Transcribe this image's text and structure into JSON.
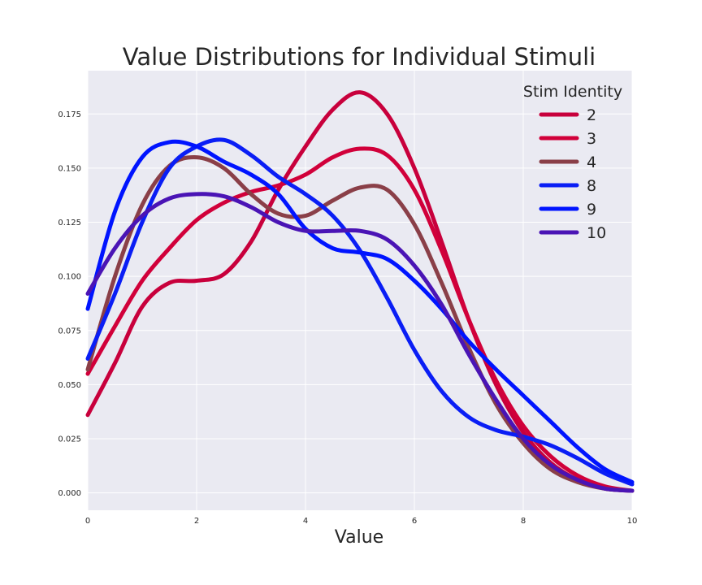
{
  "chart_data": {
    "type": "line",
    "title": "Value Distributions for Individual Stimuli",
    "xlabel": "Value",
    "ylabel": "",
    "xlim": [
      0,
      10
    ],
    "ylim": [
      -0.008,
      0.195
    ],
    "xticks": [
      0,
      2,
      4,
      6,
      8,
      10
    ],
    "yticks": [
      0.0,
      0.025,
      0.05,
      0.075,
      0.1,
      0.125,
      0.15,
      0.175
    ],
    "xtick_labels": [
      "0",
      "2",
      "4",
      "6",
      "8",
      "10"
    ],
    "ytick_labels": [
      "0.000",
      "0.025",
      "0.050",
      "0.075",
      "0.100",
      "0.125",
      "0.150",
      "0.175"
    ],
    "grid": true,
    "background": "#eaeaf2",
    "legend": {
      "title": "Stim Identity",
      "placement": "top-right"
    },
    "x": [
      0,
      0.5,
      1,
      1.5,
      2,
      2.5,
      3,
      3.5,
      4,
      4.5,
      5,
      5.5,
      6,
      6.5,
      7,
      7.5,
      8,
      8.5,
      9,
      9.5,
      10
    ],
    "series": [
      {
        "name": "2",
        "color": "#c8003c",
        "values": [
          0.036,
          0.06,
          0.086,
          0.097,
          0.098,
          0.101,
          0.116,
          0.14,
          0.16,
          0.177,
          0.185,
          0.175,
          0.15,
          0.116,
          0.08,
          0.05,
          0.028,
          0.014,
          0.006,
          0.002,
          0.001
        ]
      },
      {
        "name": "3",
        "color": "#d1003a",
        "values": [
          0.055,
          0.077,
          0.098,
          0.113,
          0.126,
          0.134,
          0.139,
          0.142,
          0.147,
          0.155,
          0.159,
          0.156,
          0.14,
          0.112,
          0.08,
          0.052,
          0.031,
          0.017,
          0.008,
          0.003,
          0.001
        ]
      },
      {
        "name": "4",
        "color": "#8a3f48",
        "values": [
          0.057,
          0.1,
          0.133,
          0.151,
          0.155,
          0.15,
          0.138,
          0.129,
          0.128,
          0.135,
          0.141,
          0.14,
          0.124,
          0.097,
          0.067,
          0.041,
          0.023,
          0.011,
          0.005,
          0.002,
          0.001
        ]
      },
      {
        "name": "8",
        "color": "#0a1ef5",
        "values": [
          0.062,
          0.092,
          0.125,
          0.15,
          0.16,
          0.163,
          0.156,
          0.146,
          0.138,
          0.128,
          0.112,
          0.09,
          0.066,
          0.047,
          0.035,
          0.029,
          0.026,
          0.022,
          0.016,
          0.009,
          0.004
        ]
      },
      {
        "name": "9",
        "color": "#0014ff",
        "values": [
          0.085,
          0.13,
          0.155,
          0.162,
          0.16,
          0.153,
          0.147,
          0.138,
          0.122,
          0.113,
          0.111,
          0.108,
          0.098,
          0.085,
          0.07,
          0.057,
          0.045,
          0.033,
          0.021,
          0.011,
          0.005
        ]
      },
      {
        "name": "10",
        "color": "#4a14b5",
        "values": [
          0.092,
          0.113,
          0.128,
          0.136,
          0.138,
          0.137,
          0.132,
          0.125,
          0.121,
          0.121,
          0.121,
          0.117,
          0.105,
          0.087,
          0.064,
          0.043,
          0.025,
          0.013,
          0.006,
          0.002,
          0.001
        ]
      }
    ]
  }
}
